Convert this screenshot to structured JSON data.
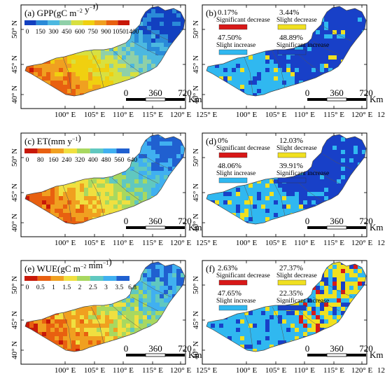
{
  "panels": [
    {
      "tag": "(a)",
      "title": "GPP(gC m",
      "sup1": "−2",
      "mid": " y",
      "sup2": "−1",
      "close": ")",
      "type": "value",
      "colors": [
        "#1240c0",
        "#2a8ad8",
        "#4cb8e0",
        "#8fd0a8",
        "#d8e040",
        "#f0d010",
        "#f0a020",
        "#e86010",
        "#c81808"
      ],
      "ticks": [
        "0",
        "150",
        "300",
        "450",
        "600",
        "750",
        "900",
        "1050",
        "1400"
      ],
      "scale_labels": [
        "0",
        "360",
        "720",
        "Km"
      ]
    },
    {
      "tag": "(b)",
      "type": "trend",
      "legend": [
        {
          "pct": "0.17%",
          "label": "Significant decrease",
          "color": "#d81818"
        },
        {
          "pct": "3.44%",
          "label": "Slight decrease",
          "color": "#f0e020"
        },
        {
          "pct": "47.50%",
          "label": "Slight increase",
          "color": "#30b8f0"
        },
        {
          "pct": "48.89%",
          "label": "Significant increase",
          "color": "#1840c8"
        }
      ],
      "scale_labels": [
        "0",
        "360",
        "720",
        "Km"
      ]
    },
    {
      "tag": "(c)",
      "title": "ET(mm y",
      "sup1": "−1",
      "mid": "",
      "sup2": "",
      "close": ")",
      "type": "value",
      "colors": [
        "#c81808",
        "#e86010",
        "#f0a020",
        "#f0e040",
        "#a8d860",
        "#60c8c0",
        "#40b0f0",
        "#2060d0"
      ],
      "ticks": [
        "0",
        "80",
        "160",
        "240",
        "320",
        "400",
        "480",
        "560",
        "640"
      ],
      "scale_labels": [
        "0",
        "360",
        "720",
        "Km"
      ]
    },
    {
      "tag": "(d)",
      "type": "trend",
      "legend": [
        {
          "pct": "0%",
          "label": "Significant decrease",
          "color": "#d81818"
        },
        {
          "pct": "12.03%",
          "label": "Slight decrease",
          "color": "#f0e020"
        },
        {
          "pct": "48.06%",
          "label": "Slight increase",
          "color": "#30b8f0"
        },
        {
          "pct": "39.91%",
          "label": "Significant increase",
          "color": "#1840c8"
        }
      ],
      "scale_labels": [
        "0",
        "360",
        "720",
        "Km"
      ]
    },
    {
      "tag": "(e)",
      "title": "WUE(gC m",
      "sup1": "−2",
      "mid": " mm",
      "sup2": "−1",
      "close": ")",
      "type": "value",
      "colors": [
        "#c81808",
        "#e86010",
        "#f0a020",
        "#f0e040",
        "#a8d860",
        "#60c8c0",
        "#40b0f0",
        "#2060d0"
      ],
      "ticks": [
        "0",
        "0.5",
        "1",
        "1.5",
        "2",
        "2.5",
        "3",
        "3.5",
        "6.8"
      ],
      "scale_labels": [
        "0",
        "360",
        "720",
        "Km"
      ]
    },
    {
      "tag": "(f)",
      "type": "trend",
      "legend": [
        {
          "pct": "2.63%",
          "label": "Significant decrease",
          "color": "#d81818"
        },
        {
          "pct": "27.37%",
          "label": "Slight decrease",
          "color": "#f0e020"
        },
        {
          "pct": "47.65%",
          "label": "Slight increase",
          "color": "#30b8f0"
        },
        {
          "pct": "22.35%",
          "label": "Significant increase",
          "color": "#1840c8"
        }
      ],
      "scale_labels": [
        "0",
        "360",
        "720",
        "Km"
      ]
    }
  ],
  "axes": {
    "lon_labels": [
      "100° E",
      "105° E",
      "110° E",
      "115° E",
      "120° E",
      "125° E"
    ],
    "lat_labels": [
      "50° N",
      "45° N",
      "40° N"
    ]
  }
}
